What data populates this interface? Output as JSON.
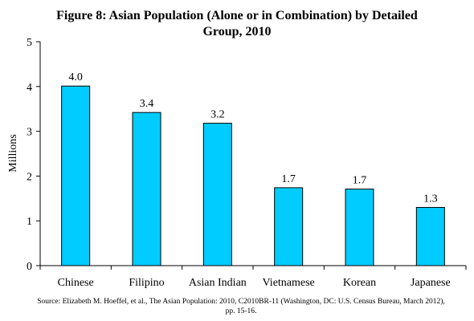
{
  "chart_data": {
    "type": "bar",
    "title_line1": "Figure 8: Asian Population (Alone or in Combination) by Detailed",
    "title_line2": "Group, 2010",
    "xlabel": "",
    "ylabel": "Millions",
    "ylim": [
      0,
      5
    ],
    "yticks": [
      "0",
      "1",
      "2",
      "3",
      "4",
      "5"
    ],
    "grid": false,
    "categories": [
      "Chinese",
      "Filipino",
      "Asian Indian",
      "Vietnamese",
      "Korean",
      "Japanese"
    ],
    "values": [
      4.0,
      3.4,
      3.2,
      1.7,
      1.7,
      1.3
    ],
    "value_labels": [
      "4.0",
      "3.4",
      "3.2",
      "1.7",
      "1.7",
      "1.3"
    ],
    "bar_true_values": [
      4.01,
      3.42,
      3.18,
      1.74,
      1.71,
      1.3
    ],
    "bar_color": "#00CCFF",
    "bar_stroke": "#000000"
  },
  "source": {
    "line1": "Source: Elizabeth M. Hoeffel, et al., The Asian Population: 2010, C2010BR-11 (Washington, DC: U.S. Census Bureau, March 2012),",
    "line2": "pp. 15-16."
  }
}
